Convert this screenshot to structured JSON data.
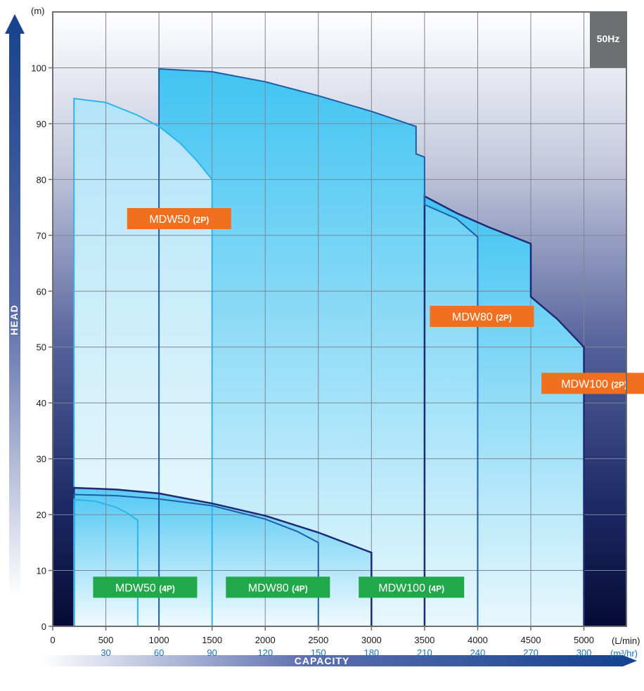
{
  "chart_data": {
    "type": "area",
    "frequency_badge": "50Hz",
    "xlabel": "CAPACITY",
    "ylabel": "HEAD",
    "y_unit": "(m)",
    "x_unit": "(L/min)",
    "x2_unit": "(m³/hr)",
    "xlim": [
      0,
      5400
    ],
    "ylim": [
      0,
      110
    ],
    "grid": true,
    "x_ticks": [
      0,
      500,
      1000,
      1500,
      2000,
      2500,
      3000,
      3500,
      4000,
      4500,
      5000
    ],
    "x_tick_labels": [
      "0",
      "500",
      "1000",
      "1500",
      "2000",
      "2500",
      "3000",
      "3500",
      "4000",
      "4500",
      "5000"
    ],
    "x2_ticks": [
      500,
      1000,
      1500,
      2000,
      2500,
      3000,
      3500,
      4000,
      4500,
      5000
    ],
    "x2_tick_labels": [
      "30",
      "60",
      "90",
      "120",
      "150",
      "180",
      "210",
      "240",
      "270",
      "300"
    ],
    "y_ticks": [
      0,
      10,
      20,
      30,
      40,
      50,
      60,
      70,
      80,
      90,
      100
    ],
    "y_tick_labels": [
      "0",
      "10",
      "20",
      "30",
      "40",
      "50",
      "60",
      "70",
      "80",
      "90",
      "100"
    ],
    "series": [
      {
        "name": "MDW100 (2P)",
        "label_main": "MDW100",
        "label_pole": "(2P)",
        "label_color": "#f07020",
        "label_at": [
          4600,
          43.5
        ],
        "x_min": 3500,
        "outline": [
          [
            3500,
            77
          ],
          [
            3800,
            74
          ],
          [
            4100,
            71.5
          ],
          [
            4500,
            68.5
          ],
          [
            4500,
            59
          ],
          [
            4750,
            55
          ],
          [
            5000,
            50
          ]
        ]
      },
      {
        "name": "MDW80 (2P)",
        "label_main": "MDW80",
        "label_pole": "(2P)",
        "label_color": "#f07020",
        "label_at": [
          3550,
          55.5
        ],
        "x_min": 1000,
        "outline": [
          [
            1000,
            99.8
          ],
          [
            1500,
            99.3
          ],
          [
            2000,
            97.5
          ],
          [
            2500,
            95
          ],
          [
            3000,
            92.2
          ],
          [
            3420,
            89.5
          ],
          [
            3420,
            84.6
          ],
          [
            3500,
            84
          ],
          [
            3500,
            75.5
          ],
          [
            3800,
            73
          ],
          [
            4000,
            69.7
          ]
        ]
      },
      {
        "name": "MDW50 (2P)",
        "label_main": "MDW50",
        "label_pole": "(2P)",
        "label_color": "#f07020",
        "label_at": [
          700,
          73
        ],
        "x_min": 200,
        "outline": [
          [
            200,
            94.5
          ],
          [
            500,
            93.8
          ],
          [
            800,
            91.5
          ],
          [
            1000,
            89.5
          ],
          [
            1200,
            86.5
          ],
          [
            1350,
            83.5
          ],
          [
            1500,
            80
          ]
        ]
      },
      {
        "name": "MDW100 (4P)",
        "label_main": "MDW100",
        "label_pole": "(4P)",
        "label_color": "#20a84a",
        "label_at": [
          2880,
          7
        ],
        "x_min": 200,
        "outline": [
          [
            200,
            24.8
          ],
          [
            600,
            24.5
          ],
          [
            1000,
            23.8
          ],
          [
            1500,
            22
          ],
          [
            2000,
            19.8
          ],
          [
            2500,
            16.8
          ],
          [
            3000,
            13.2
          ]
        ]
      },
      {
        "name": "MDW80 (4P)",
        "label_main": "MDW80",
        "label_pole": "(4P)",
        "label_color": "#20a84a",
        "label_at": [
          1630,
          7
        ],
        "x_min": 200,
        "outline": [
          [
            200,
            23.6
          ],
          [
            600,
            23.4
          ],
          [
            1000,
            22.8
          ],
          [
            1500,
            21.6
          ],
          [
            2000,
            19.2
          ],
          [
            2300,
            17
          ],
          [
            2500,
            15
          ]
        ]
      },
      {
        "name": "MDW50 (4P)",
        "label_main": "MDW50",
        "label_pole": "(4P)",
        "label_color": "#20a84a",
        "label_at": [
          380,
          7
        ],
        "x_min": 200,
        "outline": [
          [
            200,
            22.7
          ],
          [
            400,
            22.4
          ],
          [
            600,
            21.3
          ],
          [
            700,
            20.3
          ],
          [
            800,
            19
          ]
        ]
      }
    ]
  }
}
